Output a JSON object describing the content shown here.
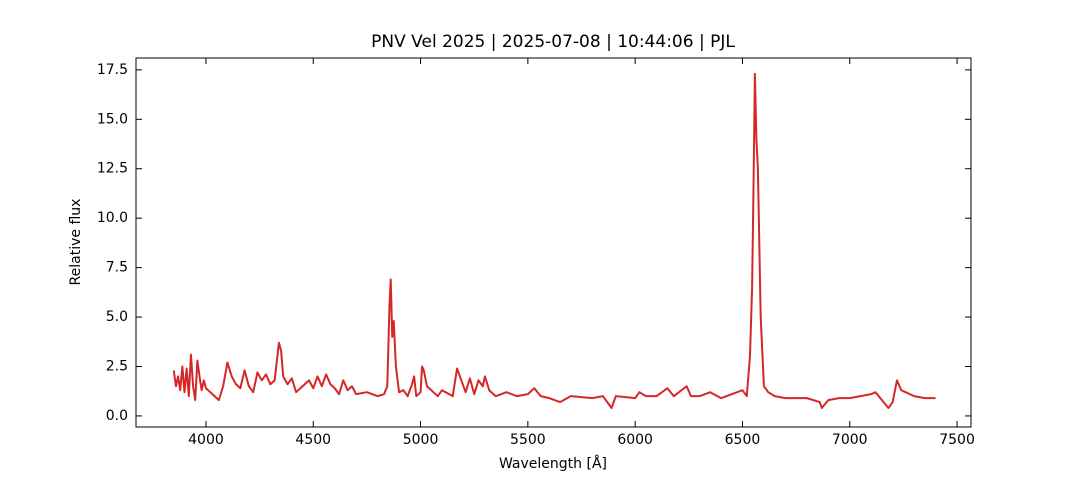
{
  "chart_data": {
    "type": "line",
    "title": "PNV Vel 2025 | 2025-07-08 | 10:44:06 | PJL",
    "x_label": "Wavelength [Å]",
    "y_label": "Relative flux",
    "xlim": [
      3674,
      7565
    ],
    "ylim": [
      -0.56,
      18.1
    ],
    "xticks": [
      4000,
      4500,
      5000,
      5500,
      6000,
      6500,
      7000,
      7500
    ],
    "yticks": [
      {
        "value": 0,
        "label": "0.0"
      },
      2.5,
      {
        "value": 5,
        "label": "5.0"
      },
      7.5,
      {
        "value": 10,
        "label": "10.0"
      },
      12.5,
      {
        "value": 15,
        "label": "15.0"
      },
      17.5
    ],
    "grid": false,
    "x": [
      3850,
      3860,
      3870,
      3880,
      3890,
      3900,
      3910,
      3920,
      3930,
      3940,
      3950,
      3960,
      3970,
      3980,
      3990,
      4000,
      4020,
      4040,
      4060,
      4080,
      4100,
      4120,
      4140,
      4160,
      4180,
      4200,
      4220,
      4240,
      4260,
      4280,
      4300,
      4320,
      4340,
      4350,
      4360,
      4380,
      4400,
      4420,
      4450,
      4480,
      4500,
      4520,
      4540,
      4560,
      4580,
      4600,
      4620,
      4640,
      4660,
      4680,
      4700,
      4750,
      4800,
      4830,
      4845,
      4855,
      4861,
      4868,
      4875,
      4885,
      4900,
      4920,
      4940,
      4960,
      4970,
      4980,
      5000,
      5007,
      5015,
      5030,
      5060,
      5080,
      5100,
      5150,
      5170,
      5190,
      5210,
      5230,
      5250,
      5270,
      5290,
      5300,
      5320,
      5350,
      5400,
      5450,
      5500,
      5530,
      5560,
      5600,
      5650,
      5700,
      5800,
      5850,
      5890,
      5910,
      6000,
      6020,
      6050,
      6100,
      6150,
      6180,
      6240,
      6260,
      6300,
      6350,
      6400,
      6450,
      6500,
      6520,
      6535,
      6545,
      6552,
      6558,
      6565,
      6572,
      6585,
      6600,
      6620,
      6650,
      6700,
      6800,
      6860,
      6870,
      6900,
      6950,
      7000,
      7050,
      7100,
      7120,
      7150,
      7180,
      7200,
      7220,
      7240,
      7260,
      7300,
      7350,
      7400
    ],
    "series": [
      {
        "name": "Relative flux",
        "color": "#d62728",
        "values": [
          2.3,
          1.5,
          2.0,
          1.3,
          2.5,
          1.2,
          2.4,
          1.0,
          3.1,
          1.5,
          0.8,
          2.8,
          2.0,
          1.3,
          1.8,
          1.4,
          1.2,
          1.0,
          0.8,
          1.5,
          2.7,
          2.0,
          1.6,
          1.4,
          2.3,
          1.5,
          1.2,
          2.2,
          1.8,
          2.1,
          1.6,
          1.8,
          3.7,
          3.3,
          2.0,
          1.6,
          1.9,
          1.2,
          1.5,
          1.8,
          1.4,
          2.0,
          1.5,
          2.1,
          1.6,
          1.4,
          1.1,
          1.8,
          1.3,
          1.5,
          1.1,
          1.2,
          1.0,
          1.1,
          1.5,
          5.5,
          6.9,
          4.0,
          4.8,
          2.5,
          1.2,
          1.3,
          1.0,
          1.6,
          2.0,
          1.0,
          1.2,
          2.5,
          2.3,
          1.5,
          1.2,
          1.0,
          1.3,
          1.0,
          2.4,
          1.8,
          1.2,
          1.9,
          1.1,
          1.8,
          1.5,
          2.0,
          1.3,
          1.0,
          1.2,
          1.0,
          1.1,
          1.4,
          1.0,
          0.9,
          0.7,
          1.0,
          0.9,
          1.0,
          0.4,
          1.0,
          0.9,
          1.2,
          1.0,
          1.0,
          1.4,
          1.0,
          1.5,
          1.0,
          1.0,
          1.2,
          0.9,
          1.1,
          1.3,
          1.0,
          3.0,
          6.5,
          12.0,
          17.3,
          14.0,
          12.5,
          5.0,
          1.5,
          1.2,
          1.0,
          0.9,
          0.9,
          0.7,
          0.4,
          0.8,
          0.9,
          0.9,
          1.0,
          1.1,
          1.2,
          0.8,
          0.4,
          0.7,
          1.8,
          1.3,
          1.2,
          1.0,
          0.9,
          0.9
        ]
      }
    ]
  }
}
